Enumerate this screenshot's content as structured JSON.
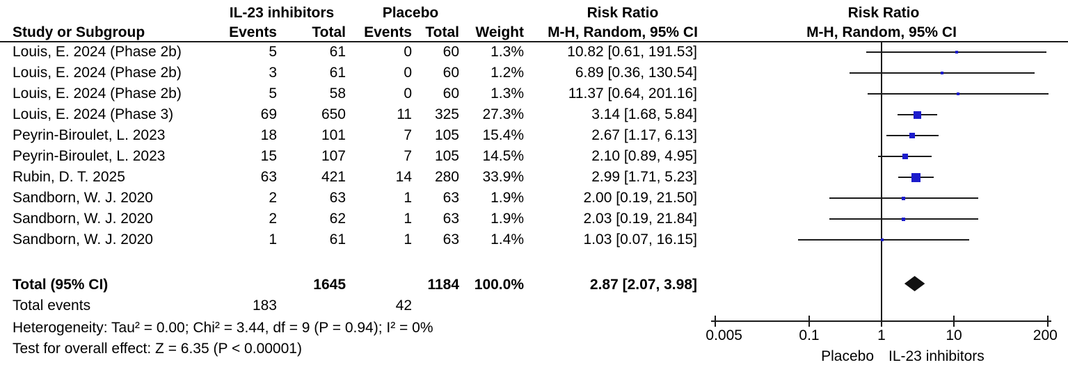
{
  "header": {
    "group_treatment": "IL-23 inhibitors",
    "group_control": "Placebo",
    "risk_ratio_left": "Risk Ratio",
    "risk_ratio_right": "Risk Ratio",
    "col_study": "Study or Subgroup",
    "col_events_treatment": "Events",
    "col_total_treatment": "Total",
    "col_events_control": "Events",
    "col_total_control": "Total",
    "col_weight": "Weight",
    "method_left": "M-H, Random, 95% CI",
    "method_right": "M-H, Random, 95% CI"
  },
  "chart_data": {
    "type": "scatter",
    "subtype": "forest_plot",
    "effect_measure": "Risk Ratio",
    "method": "M-H, Random, 95% CI",
    "x_scale": "log",
    "xlim": [
      0.005,
      200
    ],
    "x_ticks": [
      {
        "label": "0.005",
        "value": 0.005
      },
      {
        "label": "0.1",
        "value": 0.1
      },
      {
        "label": "1",
        "value": 1
      },
      {
        "label": "10",
        "value": 10
      },
      {
        "label": "200",
        "value": 200
      }
    ],
    "favors_left": "Placebo",
    "favors_right": "IL-23 inhibitors",
    "studies": [
      {
        "study": "Louis, E. 2024 (Phase 2b)",
        "events_trt": "5",
        "total_trt": "61",
        "events_ctl": "0",
        "total_ctl": "60",
        "weight": "1.3%",
        "weight_pct": 1.3,
        "rr_label": "10.82 [0.61, 191.53]",
        "rr": 10.82,
        "ci_low": 0.61,
        "ci_high": 191.53
      },
      {
        "study": "Louis, E. 2024 (Phase 2b)",
        "events_trt": "3",
        "total_trt": "61",
        "events_ctl": "0",
        "total_ctl": "60",
        "weight": "1.2%",
        "weight_pct": 1.2,
        "rr_label": "6.89 [0.36, 130.54]",
        "rr": 6.89,
        "ci_low": 0.36,
        "ci_high": 130.54
      },
      {
        "study": "Louis, E. 2024 (Phase 2b)",
        "events_trt": "5",
        "total_trt": "58",
        "events_ctl": "0",
        "total_ctl": "60",
        "weight": "1.3%",
        "weight_pct": 1.3,
        "rr_label": "11.37 [0.64, 201.16]",
        "rr": 11.37,
        "ci_low": 0.64,
        "ci_high": 201.16
      },
      {
        "study": "Louis, E. 2024 (Phase 3)",
        "events_trt": "69",
        "total_trt": "650",
        "events_ctl": "11",
        "total_ctl": "325",
        "weight": "27.3%",
        "weight_pct": 27.3,
        "rr_label": "3.14 [1.68, 5.84]",
        "rr": 3.14,
        "ci_low": 1.68,
        "ci_high": 5.84
      },
      {
        "study": "Peyrin-Biroulet, L. 2023",
        "events_trt": "18",
        "total_trt": "101",
        "events_ctl": "7",
        "total_ctl": "105",
        "weight": "15.4%",
        "weight_pct": 15.4,
        "rr_label": "2.67 [1.17, 6.13]",
        "rr": 2.67,
        "ci_low": 1.17,
        "ci_high": 6.13
      },
      {
        "study": "Peyrin-Biroulet, L. 2023",
        "events_trt": "15",
        "total_trt": "107",
        "events_ctl": "7",
        "total_ctl": "105",
        "weight": "14.5%",
        "weight_pct": 14.5,
        "rr_label": "2.10 [0.89, 4.95]",
        "rr": 2.1,
        "ci_low": 0.89,
        "ci_high": 4.95
      },
      {
        "study": "Rubin, D. T. 2025",
        "events_trt": "63",
        "total_trt": "421",
        "events_ctl": "14",
        "total_ctl": "280",
        "weight": "33.9%",
        "weight_pct": 33.9,
        "rr_label": "2.99 [1.71, 5.23]",
        "rr": 2.99,
        "ci_low": 1.71,
        "ci_high": 5.23
      },
      {
        "study": "Sandborn, W. J. 2020",
        "events_trt": "2",
        "total_trt": "63",
        "events_ctl": "1",
        "total_ctl": "63",
        "weight": "1.9%",
        "weight_pct": 1.9,
        "rr_label": "2.00 [0.19, 21.50]",
        "rr": 2.0,
        "ci_low": 0.19,
        "ci_high": 21.5
      },
      {
        "study": "Sandborn, W. J. 2020",
        "events_trt": "2",
        "total_trt": "62",
        "events_ctl": "1",
        "total_ctl": "63",
        "weight": "1.9%",
        "weight_pct": 1.9,
        "rr_label": "2.03 [0.19, 21.84]",
        "rr": 2.03,
        "ci_low": 0.19,
        "ci_high": 21.84
      },
      {
        "study": "Sandborn, W. J. 2020",
        "events_trt": "1",
        "total_trt": "61",
        "events_ctl": "1",
        "total_ctl": "63",
        "weight": "1.4%",
        "weight_pct": 1.4,
        "rr_label": "1.03 [0.07, 16.15]",
        "rr": 1.03,
        "ci_low": 0.07,
        "ci_high": 16.15
      }
    ],
    "total": {
      "label": "Total (95% CI)",
      "total_trt": "1645",
      "total_ctl": "1184",
      "weight": "100.0%",
      "rr_label": "2.87 [2.07, 3.98]",
      "rr": 2.87,
      "ci_low": 2.07,
      "ci_high": 3.98
    }
  },
  "total_events": {
    "label": "Total events",
    "treatment": "183",
    "control": "42"
  },
  "footer": {
    "heterogeneity": "Heterogeneity: Tau² = 0.00; Chi² = 3.44, df = 9 (P = 0.94); I² = 0%",
    "overall_effect": "Test for overall effect: Z = 6.35 (P < 0.00001)"
  },
  "colors": {
    "marker_blue": "#1c1ccc",
    "diamond_black": "#111111",
    "line_black": "#1a1a1a"
  }
}
